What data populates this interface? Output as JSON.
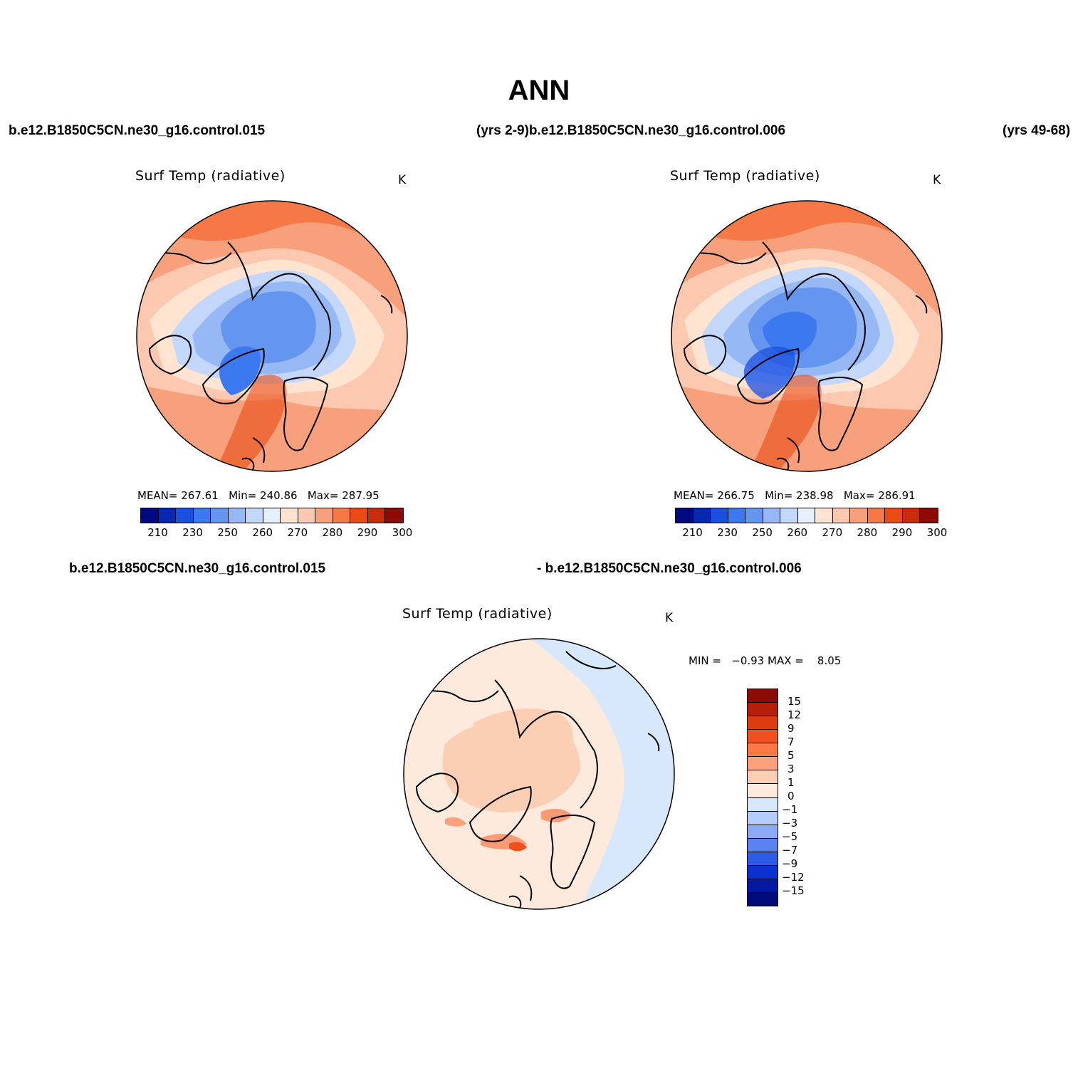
{
  "title": "ANN",
  "header_row1": {
    "left": "b.e12.B1850C5CN.ne30_g16.control.015",
    "middle": "(yrs 2-9)b.e12.B1850C5CN.ne30_g16.control.006",
    "right": "(yrs 49-68)"
  },
  "header_row2": {
    "left": "b.e12.B1850C5CN.ne30_g16.control.015",
    "right": "- b.e12.B1850C5CN.ne30_g16.control.006"
  },
  "panels": [
    {
      "title": "Surf Temp (radiative)",
      "units": "K",
      "stats": {
        "mean_label": "MEAN=",
        "mean": "267.61",
        "min_label": "Min=",
        "min": "240.86",
        "max_label": "Max=",
        "max": "287.95"
      }
    },
    {
      "title": "Surf Temp (radiative)",
      "units": "K",
      "stats": {
        "mean_label": "MEAN=",
        "mean": "266.75",
        "min_label": "Min=",
        "min": "238.98",
        "max_label": "Max=",
        "max": "286.91"
      }
    },
    {
      "title": "Surf Temp (radiative)",
      "units": "K",
      "minmax": {
        "min_label": "MIN =",
        "min": "−0.93",
        "max_label": "MAX =",
        "max": "8.05"
      }
    }
  ],
  "colorbar_abs": {
    "colors": [
      "#000a80",
      "#0528b0",
      "#1a4fe0",
      "#3c78f0",
      "#6496f0",
      "#96b9f5",
      "#c3d7fa",
      "#e6f0ff",
      "#ffe4d2",
      "#fcc8b0",
      "#f8a07c",
      "#f57846",
      "#ea4a14",
      "#c82c0a",
      "#8c0a05"
    ],
    "labels": [
      "210",
      "230",
      "250",
      "260",
      "270",
      "280",
      "290",
      "300"
    ]
  },
  "colorbar_diff": {
    "colors_top_to_bottom": [
      "#8c0a05",
      "#b41e0a",
      "#dc3c0f",
      "#f0501e",
      "#fa7846",
      "#fca07c",
      "#fccfb4",
      "#feeadc",
      "#d7e8fc",
      "#b4cdfa",
      "#8caaf5",
      "#5a82f0",
      "#2d5ae6",
      "#0a32d2",
      "#0519a0",
      "#000a78"
    ],
    "labels": [
      "15",
      "12",
      "9",
      "7",
      "5",
      "3",
      "1",
      "0",
      "−1",
      "−3",
      "−5",
      "−7",
      "−9",
      "−12",
      "−15"
    ]
  }
}
